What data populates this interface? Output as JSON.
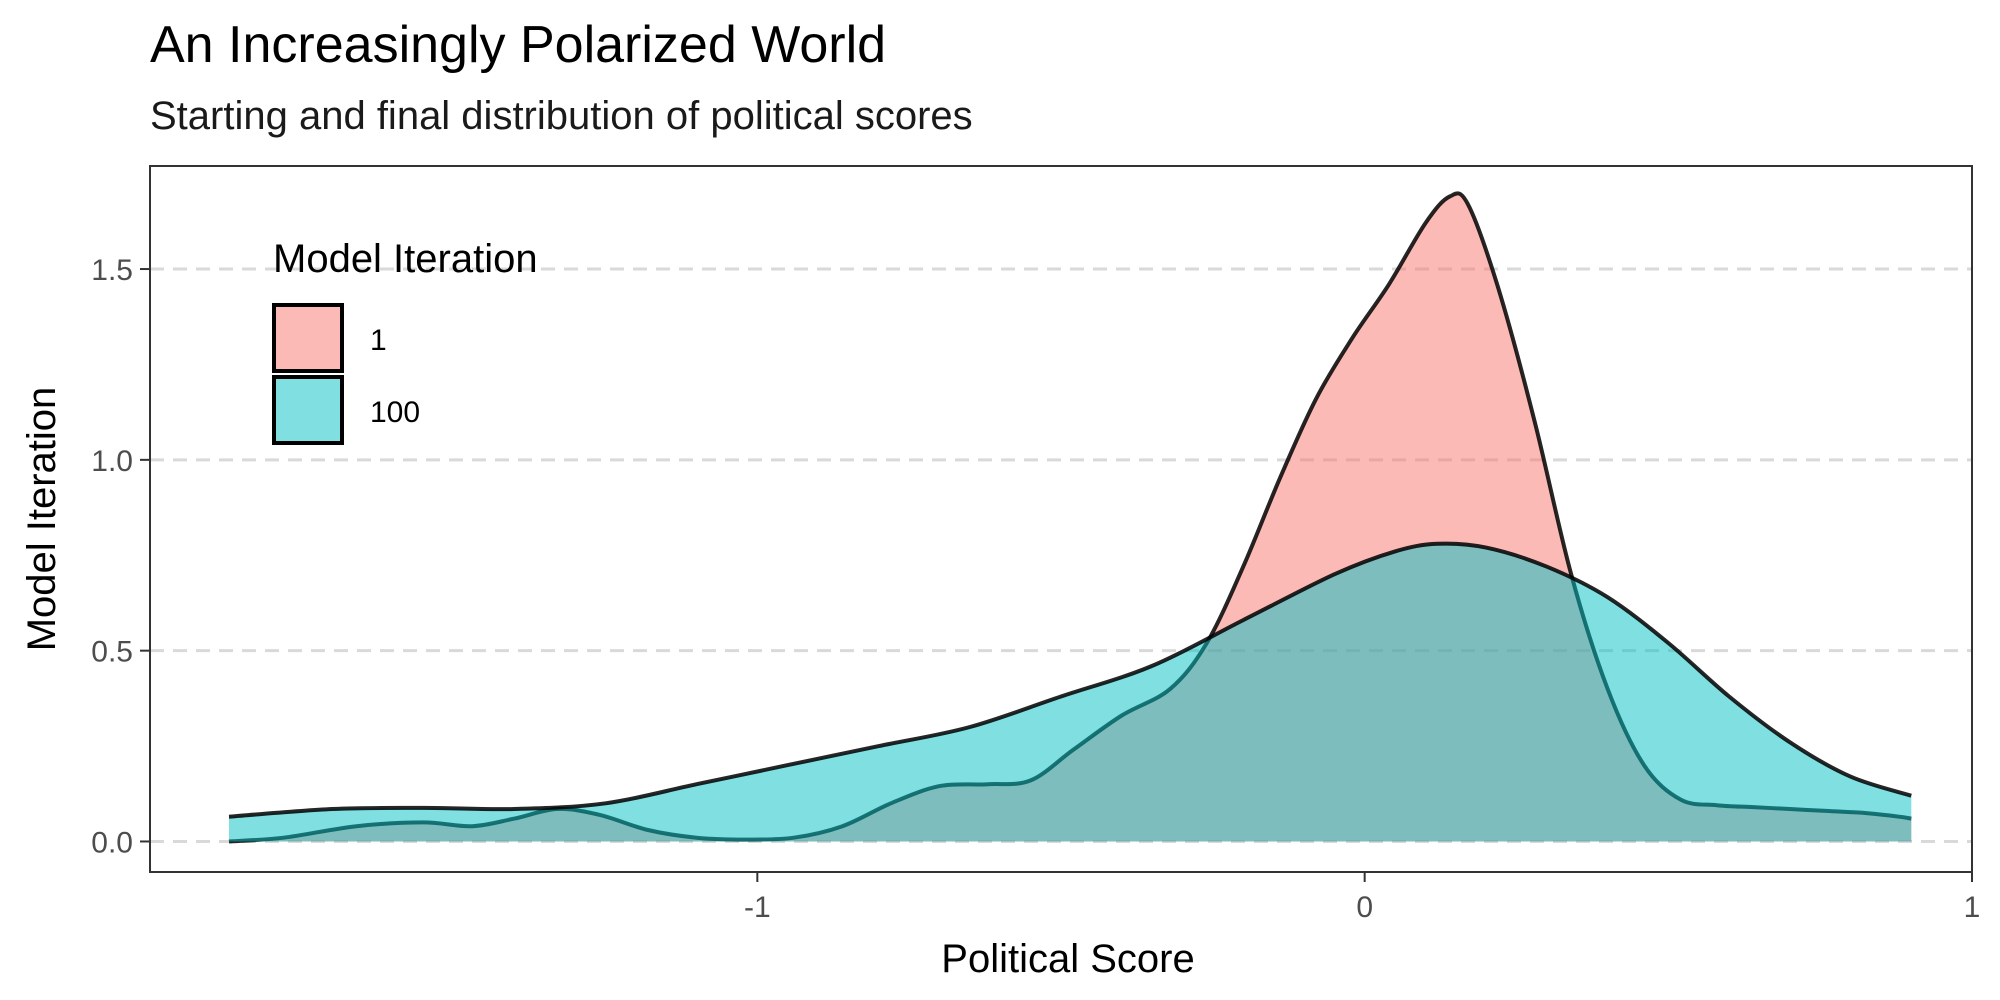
{
  "chart_data": {
    "type": "area",
    "title": "An Increasingly Polarized World",
    "subtitle": "Starting and final distribution of political scores",
    "xlabel": "Political Score",
    "ylabel": "Model Iteration",
    "xlim": [
      -2.0,
      1.0
    ],
    "ylim": [
      -0.08,
      1.77
    ],
    "x_ticks": [
      -1,
      0,
      1
    ],
    "x_tick_labels": [
      "-1",
      "0",
      "1"
    ],
    "y_ticks": [
      0.0,
      0.5,
      1.0,
      1.5
    ],
    "y_tick_labels": [
      "0.0",
      "0.5",
      "1.0",
      "1.5"
    ],
    "grid": "horizontal major, dashed",
    "legend": {
      "title": "Model Iteration",
      "position": "top-left inside"
    },
    "colors": {
      "series_1": "#F8766D",
      "series_100": "#00BFC4",
      "panel_border": "#333333",
      "grid": "#d9d9d9"
    },
    "series": [
      {
        "name": "1",
        "x": [
          -1.87,
          -1.78,
          -1.66,
          -1.55,
          -1.47,
          -1.4,
          -1.33,
          -1.26,
          -1.18,
          -1.1,
          -1.02,
          -0.94,
          -0.86,
          -0.78,
          -0.7,
          -0.62,
          -0.55,
          -0.48,
          -0.4,
          -0.32,
          -0.26,
          -0.2,
          -0.14,
          -0.08,
          -0.02,
          0.04,
          0.1,
          0.14,
          0.17,
          0.22,
          0.28,
          0.34,
          0.4,
          0.46,
          0.52,
          0.58,
          0.64,
          0.7,
          0.76,
          0.82,
          0.88,
          0.9
        ],
        "values": [
          0.0,
          0.01,
          0.04,
          0.05,
          0.04,
          0.06,
          0.085,
          0.07,
          0.03,
          0.01,
          0.005,
          0.01,
          0.04,
          0.1,
          0.145,
          0.15,
          0.16,
          0.24,
          0.33,
          0.4,
          0.52,
          0.72,
          0.95,
          1.16,
          1.32,
          1.46,
          1.62,
          1.69,
          1.67,
          1.45,
          1.1,
          0.7,
          0.4,
          0.2,
          0.11,
          0.095,
          0.09,
          0.085,
          0.08,
          0.075,
          0.065,
          0.06
        ]
      },
      {
        "name": "100",
        "x": [
          -1.87,
          -1.7,
          -1.55,
          -1.4,
          -1.25,
          -1.1,
          -0.95,
          -0.8,
          -0.65,
          -0.5,
          -0.35,
          -0.2,
          -0.05,
          0.05,
          0.12,
          0.2,
          0.3,
          0.4,
          0.5,
          0.6,
          0.7,
          0.8,
          0.9
        ],
        "values": [
          0.065,
          0.085,
          0.088,
          0.085,
          0.1,
          0.15,
          0.2,
          0.25,
          0.3,
          0.38,
          0.46,
          0.58,
          0.7,
          0.76,
          0.78,
          0.77,
          0.72,
          0.64,
          0.52,
          0.38,
          0.26,
          0.17,
          0.12
        ]
      }
    ]
  }
}
